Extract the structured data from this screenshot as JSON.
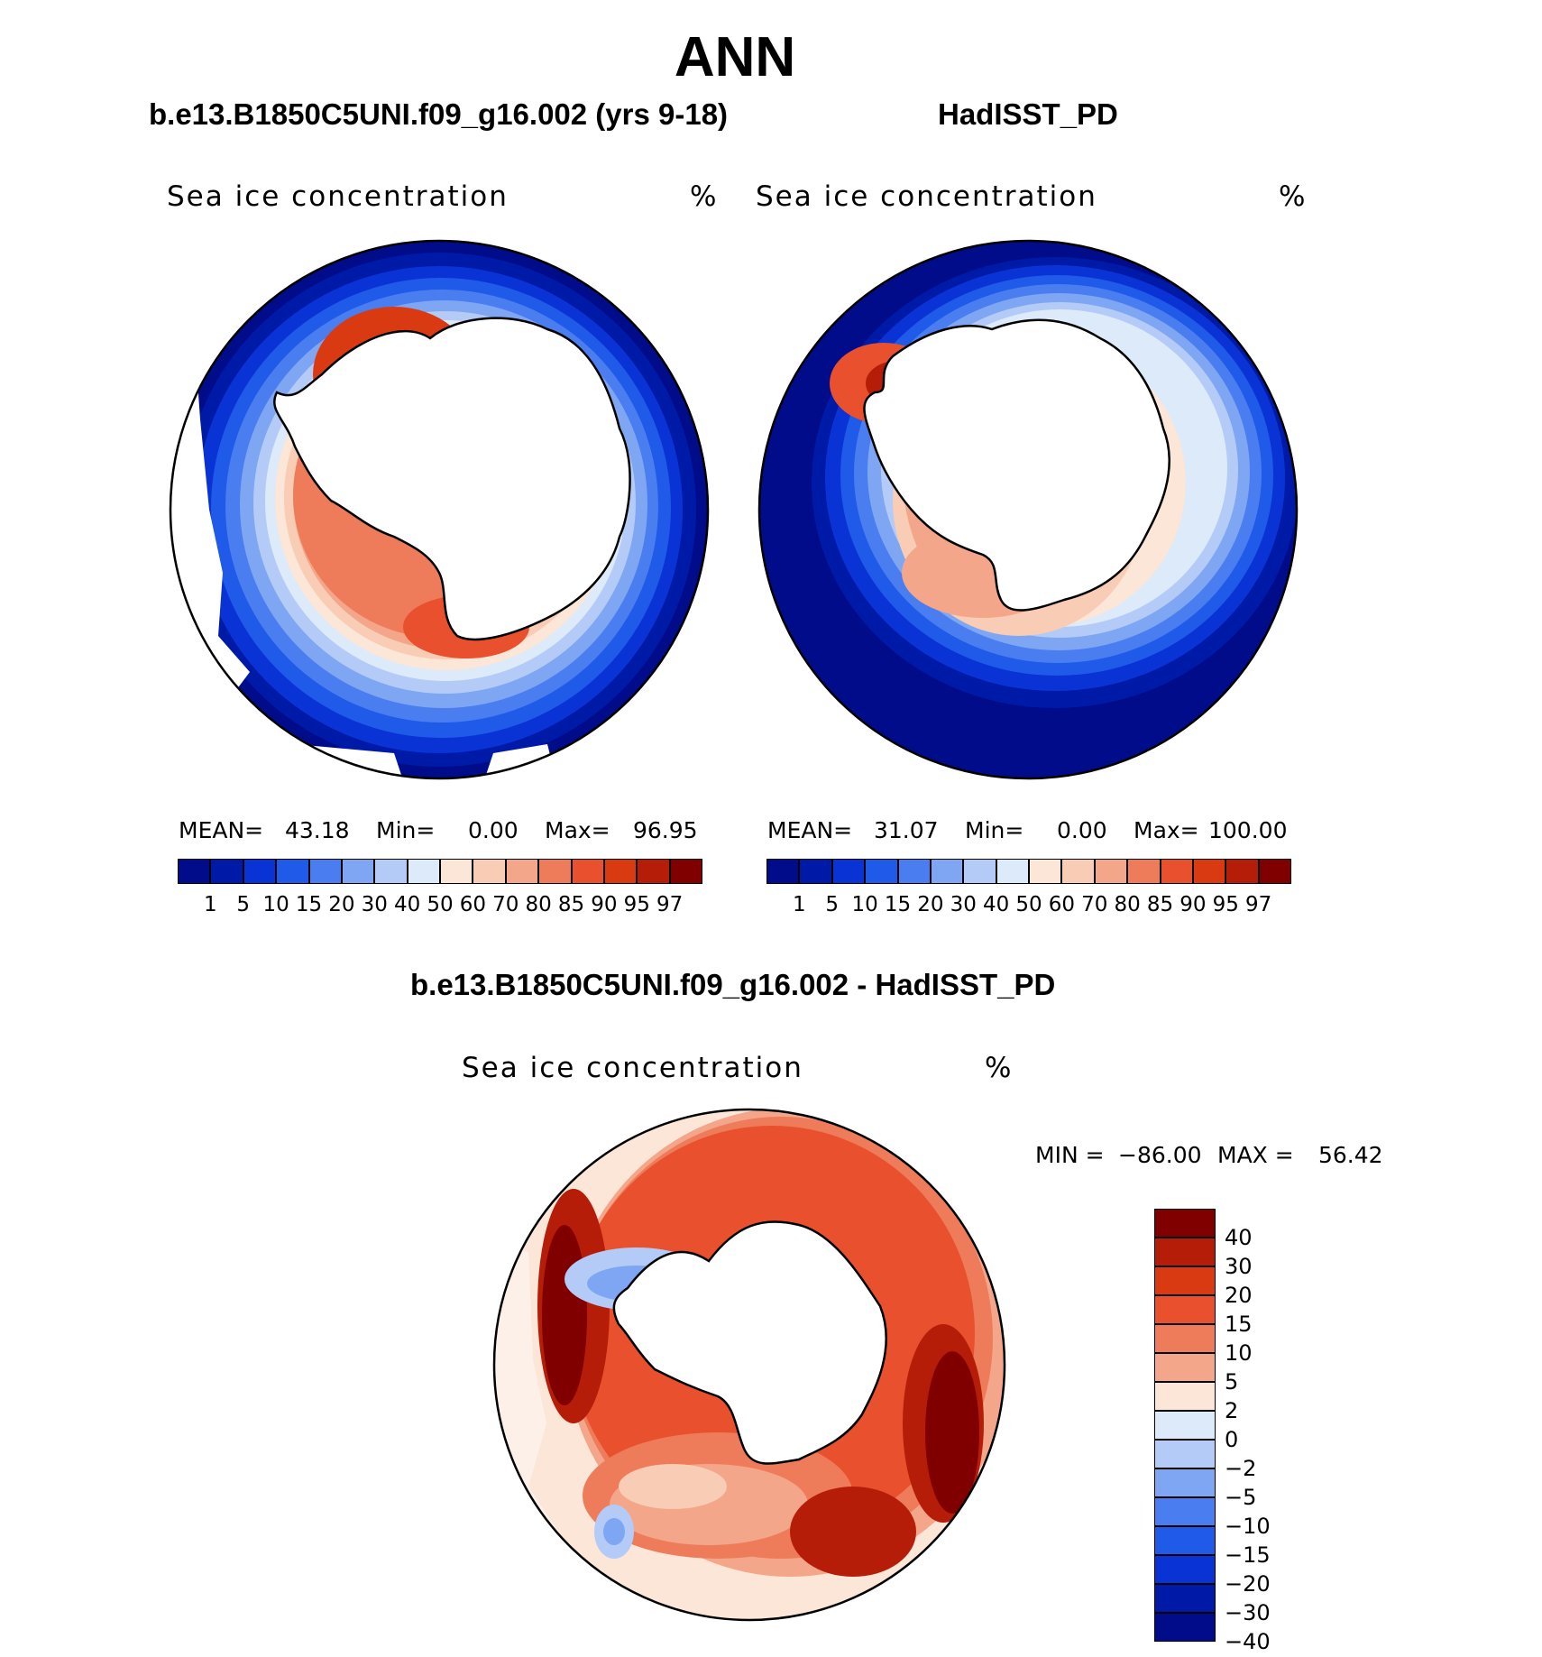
{
  "title": "ANN",
  "panels": {
    "model": {
      "case_title": "b.e13.B1850C5UNI.f09_g16.002 (yrs 9-18)",
      "field_label": "Sea ice concentration",
      "units": "%",
      "stats": {
        "mean_label": "MEAN=",
        "mean": "43.18",
        "min_label": "Min=",
        "min": "0.00",
        "max_label": "Max=",
        "max": "96.95"
      }
    },
    "obs": {
      "case_title": "HadISST_PD",
      "field_label": "Sea ice concentration",
      "units": "%",
      "stats": {
        "mean_label": "MEAN=",
        "mean": "31.07",
        "min_label": "Min=",
        "min": "0.00",
        "max_label": "Max=",
        "max": "100.00"
      }
    },
    "diff": {
      "case_title": "b.e13.B1850C5UNI.f09_g16.002 - HadISST_PD",
      "field_label": "Sea ice concentration",
      "units": "%",
      "stats": {
        "min_label": "MIN =",
        "min": "−86.00",
        "max_label": "MAX =",
        "max": "56.42"
      }
    }
  },
  "colorbar_concentration": {
    "colors": [
      "#000c8a",
      "#001aa8",
      "#0a33d6",
      "#1f5ae8",
      "#4a7df0",
      "#7fa6f2",
      "#b4cbf7",
      "#ddeafa",
      "#fbe6d8",
      "#f8ccb5",
      "#f4a68a",
      "#ee7c5a",
      "#e9502d",
      "#d93a12",
      "#b61d08",
      "#800000"
    ],
    "labels": [
      "1",
      "5",
      "10",
      "15",
      "20",
      "30",
      "40",
      "50",
      "60",
      "70",
      "80",
      "85",
      "90",
      "95",
      "97"
    ]
  },
  "colorbar_difference": {
    "colors": [
      "#800000",
      "#b61d08",
      "#d93a12",
      "#e9502d",
      "#ee7c5a",
      "#f4a68a",
      "#fbe6d8",
      "#ddeafa",
      "#b4cbf7",
      "#7fa6f2",
      "#4a7df0",
      "#1f5ae8",
      "#0a33d6",
      "#001aa8",
      "#000c8a"
    ],
    "labels": [
      "40",
      "30",
      "20",
      "15",
      "10",
      "5",
      "2",
      "0",
      "−2",
      "−5",
      "−10",
      "−15",
      "−20",
      "−30",
      "−40"
    ]
  }
}
